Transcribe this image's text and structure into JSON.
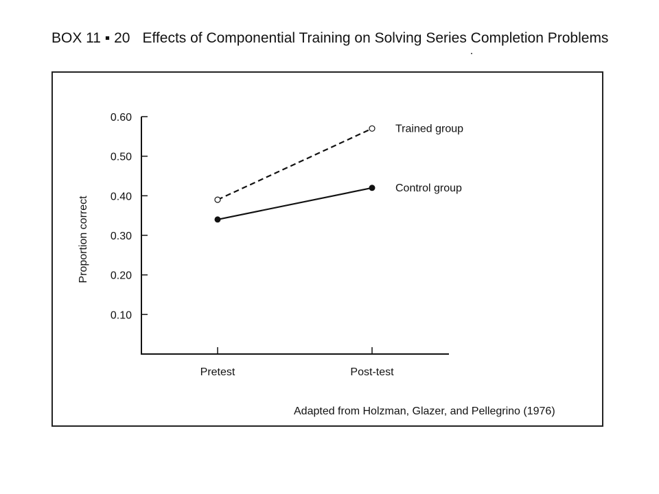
{
  "box": {
    "label": "BOX 11 ▪ 20",
    "title": "Effects of Componential Training on Solving Series Completion Problems"
  },
  "source": "Adapted from Holzman, Glazer, and Pellegrino (1976)",
  "chart_data": {
    "type": "line",
    "categories": [
      "Pretest",
      "Post-test"
    ],
    "ylabel": "Proportion correct",
    "xlabel": "",
    "yticks": [
      0.1,
      0.2,
      0.3,
      0.4,
      0.5,
      0.6
    ],
    "ytick_labels": [
      "0.10",
      "0.20",
      "0.30",
      "0.40",
      "0.50",
      "0.60"
    ],
    "ylim": [
      0.0,
      0.6
    ],
    "grid": false,
    "legend": "inline labels at line ends",
    "series": [
      {
        "name": "Trained group",
        "values": [
          0.39,
          0.57
        ],
        "style": "dashed",
        "marker": "open-circle",
        "color": "#111111"
      },
      {
        "name": "Control group",
        "values": [
          0.34,
          0.42
        ],
        "style": "solid",
        "marker": "filled-circle",
        "color": "#111111"
      }
    ]
  }
}
